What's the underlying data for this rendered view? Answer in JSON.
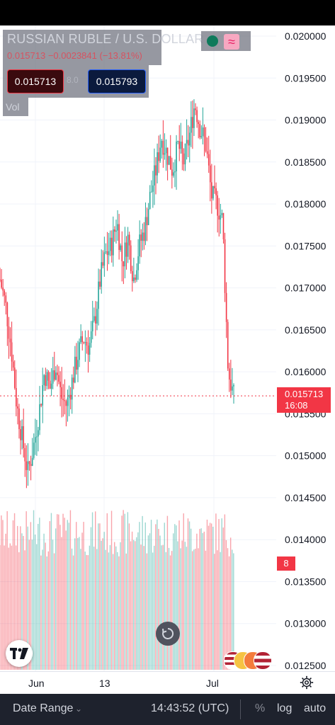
{
  "symbol": {
    "title": "RUSSIAN RUBLE / U.S. DOLLAR",
    "ohlc_line": "0.015713 −0.0023841 (−13.81%)",
    "bid": "0.015713",
    "ask": "0.015793",
    "spread": "8.0",
    "volume_label": "Vol",
    "wave_icon": "≈"
  },
  "last_price": {
    "value": "0.015713",
    "countdown": "16:08"
  },
  "volume_tag": "8",
  "bottom_bar": {
    "date_range": "Date Range",
    "date_range_chevron": "⌄",
    "clock": "14:43:52 (UTC)",
    "percent": "%",
    "log": "log",
    "auto": "auto"
  },
  "colors": {
    "up": "#26a69a",
    "down": "#f23645",
    "accent": "#2962ff"
  },
  "icons": [
    "gear-icon",
    "reset-icon",
    "tradingview-logo-icon",
    "market-open-icon",
    "wave-icon",
    "flag-icon"
  ],
  "chart_data": {
    "type": "candlestick",
    "price_axis": {
      "range": [
        0.0125,
        0.02
      ],
      "ticks": [
        "0.020000",
        "0.019500",
        "0.019000",
        "0.018500",
        "0.018000",
        "0.017500",
        "0.017000",
        "0.016500",
        "0.016000",
        "0.015500",
        "0.015000",
        "0.014500",
        "0.014000",
        "0.013500",
        "0.013000",
        "0.012500"
      ]
    },
    "time_axis": {
      "labels": [
        "Jun",
        "13",
        "Jul"
      ]
    },
    "grid": true,
    "series": [
      {
        "name": "RUSSIAN RUBLE / U.S. DOLLAR",
        "price_path": [
          0.0171,
          0.0168,
          0.0163,
          0.0156,
          0.0152,
          0.0148,
          0.0151,
          0.0155,
          0.016,
          0.0158,
          0.0161,
          0.0157,
          0.0156,
          0.0159,
          0.0162,
          0.0164,
          0.0163,
          0.0166,
          0.0171,
          0.0174,
          0.0175,
          0.0178,
          0.0173,
          0.0176,
          0.0171,
          0.0175,
          0.0177,
          0.0181,
          0.0184,
          0.0188,
          0.0186,
          0.0184,
          0.0187,
          0.0185,
          0.0188,
          0.0192,
          0.0189,
          0.0187,
          0.0181,
          0.018,
          0.0178,
          0.016,
          0.0157
        ]
      }
    ]
  }
}
